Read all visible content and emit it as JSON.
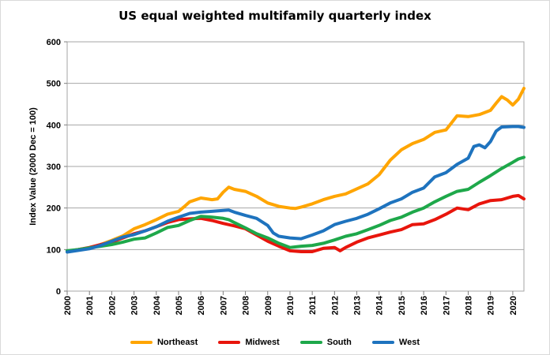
{
  "chart_data": {
    "type": "line",
    "title": "US equal weighted multifamily quarterly index",
    "ylabel": "Index Value (2000 Dec = 100)",
    "xlabel": "",
    "ylim": [
      0,
      600
    ],
    "yticks": [
      "0",
      "100",
      "200",
      "300",
      "400",
      "500",
      "600"
    ],
    "xlim": [
      2000,
      2020.5
    ],
    "xticks": [
      "2000",
      "2001",
      "2002",
      "2003",
      "2004",
      "2005",
      "2006",
      "2007",
      "2008",
      "2009",
      "2010",
      "2011",
      "2012",
      "2013",
      "2014",
      "2015",
      "2016",
      "2017",
      "2018",
      "2019",
      "2020"
    ],
    "grid": "horizontal",
    "legend_position": "bottom",
    "series": [
      {
        "name": "Northeast",
        "color": "#FFA500",
        "points": [
          [
            2000,
            96
          ],
          [
            2000.5,
            100
          ],
          [
            2001,
            104
          ],
          [
            2001.5,
            112
          ],
          [
            2002,
            122
          ],
          [
            2002.5,
            133
          ],
          [
            2003,
            150
          ],
          [
            2003.5,
            160
          ],
          [
            2004,
            172
          ],
          [
            2004.5,
            185
          ],
          [
            2005,
            192
          ],
          [
            2005.25,
            203
          ],
          [
            2005.5,
            215
          ],
          [
            2006,
            224
          ],
          [
            2006.5,
            220
          ],
          [
            2006.75,
            222
          ],
          [
            2007,
            238
          ],
          [
            2007.25,
            250
          ],
          [
            2007.5,
            245
          ],
          [
            2008,
            240
          ],
          [
            2008.5,
            228
          ],
          [
            2009,
            212
          ],
          [
            2009.5,
            204
          ],
          [
            2010,
            200
          ],
          [
            2010.25,
            199
          ],
          [
            2010.5,
            202
          ],
          [
            2011,
            210
          ],
          [
            2011.5,
            220
          ],
          [
            2012,
            228
          ],
          [
            2012.5,
            234
          ],
          [
            2013,
            246
          ],
          [
            2013.5,
            258
          ],
          [
            2014,
            280
          ],
          [
            2014.5,
            315
          ],
          [
            2015,
            340
          ],
          [
            2015.5,
            355
          ],
          [
            2016,
            365
          ],
          [
            2016.5,
            382
          ],
          [
            2017,
            388
          ],
          [
            2017.25,
            405
          ],
          [
            2017.5,
            422
          ],
          [
            2018,
            420
          ],
          [
            2018.5,
            425
          ],
          [
            2019,
            435
          ],
          [
            2019.25,
            452
          ],
          [
            2019.5,
            468
          ],
          [
            2019.75,
            460
          ],
          [
            2020,
            448
          ],
          [
            2020.25,
            462
          ],
          [
            2020.5,
            488
          ]
        ]
      },
      {
        "name": "Midwest",
        "color": "#E8150C",
        "points": [
          [
            2000,
            95
          ],
          [
            2000.5,
            100
          ],
          [
            2001,
            105
          ],
          [
            2001.5,
            112
          ],
          [
            2002,
            118
          ],
          [
            2002.5,
            128
          ],
          [
            2003,
            138
          ],
          [
            2003.5,
            145
          ],
          [
            2004,
            155
          ],
          [
            2004.5,
            165
          ],
          [
            2005,
            172
          ],
          [
            2005.5,
            174
          ],
          [
            2006,
            175
          ],
          [
            2006.5,
            170
          ],
          [
            2007,
            163
          ],
          [
            2007.5,
            157
          ],
          [
            2008,
            150
          ],
          [
            2008.5,
            135
          ],
          [
            2009,
            120
          ],
          [
            2009.5,
            108
          ],
          [
            2010,
            97
          ],
          [
            2010.5,
            95
          ],
          [
            2011,
            95
          ],
          [
            2011.5,
            103
          ],
          [
            2012,
            105
          ],
          [
            2012.25,
            97
          ],
          [
            2012.5,
            105
          ],
          [
            2013,
            118
          ],
          [
            2013.5,
            128
          ],
          [
            2014,
            135
          ],
          [
            2014.5,
            142
          ],
          [
            2015,
            148
          ],
          [
            2015.5,
            160
          ],
          [
            2016,
            162
          ],
          [
            2016.5,
            172
          ],
          [
            2017,
            185
          ],
          [
            2017.5,
            200
          ],
          [
            2018,
            196
          ],
          [
            2018.5,
            210
          ],
          [
            2019,
            218
          ],
          [
            2019.5,
            220
          ],
          [
            2020,
            228
          ],
          [
            2020.25,
            230
          ],
          [
            2020.5,
            222
          ]
        ]
      },
      {
        "name": "South",
        "color": "#1EA84A",
        "points": [
          [
            2000,
            97
          ],
          [
            2000.5,
            100
          ],
          [
            2001,
            104
          ],
          [
            2001.5,
            108
          ],
          [
            2002,
            112
          ],
          [
            2002.5,
            118
          ],
          [
            2003,
            125
          ],
          [
            2003.5,
            128
          ],
          [
            2004,
            140
          ],
          [
            2004.5,
            153
          ],
          [
            2005,
            158
          ],
          [
            2005.5,
            170
          ],
          [
            2006,
            180
          ],
          [
            2006.5,
            178
          ],
          [
            2007,
            175
          ],
          [
            2007.25,
            172
          ],
          [
            2007.5,
            165
          ],
          [
            2008,
            152
          ],
          [
            2008.5,
            138
          ],
          [
            2009,
            128
          ],
          [
            2009.5,
            115
          ],
          [
            2010,
            105
          ],
          [
            2010.5,
            108
          ],
          [
            2011,
            110
          ],
          [
            2011.5,
            115
          ],
          [
            2012,
            123
          ],
          [
            2012.5,
            132
          ],
          [
            2013,
            138
          ],
          [
            2013.5,
            148
          ],
          [
            2014,
            158
          ],
          [
            2014.5,
            170
          ],
          [
            2015,
            178
          ],
          [
            2015.5,
            190
          ],
          [
            2016,
            200
          ],
          [
            2016.5,
            215
          ],
          [
            2017,
            228
          ],
          [
            2017.5,
            240
          ],
          [
            2018,
            245
          ],
          [
            2018.5,
            262
          ],
          [
            2019,
            278
          ],
          [
            2019.5,
            295
          ],
          [
            2020,
            310
          ],
          [
            2020.25,
            318
          ],
          [
            2020.5,
            322
          ]
        ]
      },
      {
        "name": "West",
        "color": "#1E73BE",
        "points": [
          [
            2000,
            94
          ],
          [
            2000.5,
            98
          ],
          [
            2001,
            102
          ],
          [
            2001.5,
            110
          ],
          [
            2002,
            120
          ],
          [
            2002.5,
            130
          ],
          [
            2003,
            136
          ],
          [
            2003.5,
            145
          ],
          [
            2004,
            155
          ],
          [
            2004.5,
            168
          ],
          [
            2005,
            178
          ],
          [
            2005.5,
            187
          ],
          [
            2006,
            190
          ],
          [
            2006.5,
            192
          ],
          [
            2007,
            194
          ],
          [
            2007.25,
            195
          ],
          [
            2007.5,
            190
          ],
          [
            2008,
            182
          ],
          [
            2008.5,
            175
          ],
          [
            2009,
            158
          ],
          [
            2009.25,
            140
          ],
          [
            2009.5,
            132
          ],
          [
            2010,
            128
          ],
          [
            2010.5,
            126
          ],
          [
            2011,
            135
          ],
          [
            2011.5,
            145
          ],
          [
            2012,
            160
          ],
          [
            2012.5,
            168
          ],
          [
            2013,
            175
          ],
          [
            2013.5,
            185
          ],
          [
            2014,
            198
          ],
          [
            2014.5,
            212
          ],
          [
            2015,
            222
          ],
          [
            2015.5,
            238
          ],
          [
            2016,
            248
          ],
          [
            2016.5,
            275
          ],
          [
            2017,
            285
          ],
          [
            2017.5,
            305
          ],
          [
            2018,
            320
          ],
          [
            2018.25,
            348
          ],
          [
            2018.5,
            352
          ],
          [
            2018.75,
            345
          ],
          [
            2019,
            360
          ],
          [
            2019.25,
            385
          ],
          [
            2019.5,
            395
          ],
          [
            2020,
            396
          ],
          [
            2020.25,
            396
          ],
          [
            2020.5,
            394
          ]
        ]
      }
    ]
  }
}
